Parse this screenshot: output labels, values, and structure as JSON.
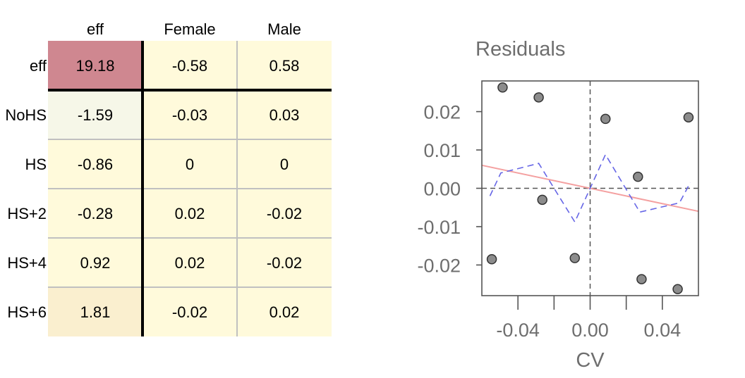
{
  "chart_data": [
    {
      "type": "table",
      "columns": [
        "eff",
        "Female",
        "Male"
      ],
      "rows": [
        {
          "label": "eff",
          "values": [
            "19.18",
            "-0.58",
            "0.58"
          ],
          "fills": [
            "#cf8790",
            "#fffadb",
            "#fffadb"
          ]
        },
        {
          "label": "NoHS",
          "values": [
            "-1.59",
            "-0.03",
            "0.03"
          ],
          "fills": [
            "#f6f7e8",
            "#fffadb",
            "#fffadb"
          ]
        },
        {
          "label": "HS",
          "values": [
            "-0.86",
            "0",
            "0"
          ],
          "fills": [
            "#fffadb",
            "#fffadb",
            "#fffadb"
          ]
        },
        {
          "label": "HS+2",
          "values": [
            "-0.28",
            "0.02",
            "-0.02"
          ],
          "fills": [
            "#fffadb",
            "#fffadb",
            "#fffadb"
          ]
        },
        {
          "label": "HS+4",
          "values": [
            "0.92",
            "0.02",
            "-0.02"
          ],
          "fills": [
            "#fffadb",
            "#fffadb",
            "#fffadb"
          ]
        },
        {
          "label": "HS+6",
          "values": [
            "1.81",
            "-0.02",
            "0.02"
          ],
          "fills": [
            "#faefcf",
            "#fffadb",
            "#fffadb"
          ]
        }
      ],
      "colors": {
        "grid": "#c0c0c0",
        "separator": "#000000"
      }
    },
    {
      "type": "scatter",
      "title": "Residuals",
      "xlabel": "CV",
      "ylabel": "",
      "xlim": [
        -0.06,
        0.06
      ],
      "ylim": [
        -0.028,
        0.028
      ],
      "xticks": [
        -0.04,
        0.0,
        0.04
      ],
      "xtick_labels": [
        "-0.04",
        "0.00",
        "0.04"
      ],
      "xticks_minor": [
        -0.02,
        0.02
      ],
      "yticks": [
        -0.02,
        -0.01,
        0.0,
        0.01,
        0.02
      ],
      "ytick_labels": [
        "-0.02",
        "-0.01",
        "0.00",
        "0.01",
        "0.02"
      ],
      "points": [
        {
          "x": -0.0545,
          "y": -0.0185
        },
        {
          "x": -0.0485,
          "y": 0.0263
        },
        {
          "x": -0.0285,
          "y": 0.0237
        },
        {
          "x": -0.0265,
          "y": -0.003
        },
        {
          "x": -0.0085,
          "y": -0.0182
        },
        {
          "x": 0.0085,
          "y": 0.0181
        },
        {
          "x": 0.0265,
          "y": 0.003
        },
        {
          "x": 0.0285,
          "y": -0.0237
        },
        {
          "x": 0.0485,
          "y": -0.0263
        },
        {
          "x": 0.0545,
          "y": 0.0185
        }
      ],
      "fit_line": {
        "x": [
          -0.06,
          0.06
        ],
        "y": [
          0.006,
          -0.006
        ],
        "color": "#f4a0a0"
      },
      "smooth_line": {
        "x": [
          -0.0555,
          -0.0495,
          -0.0285,
          -0.0085,
          0.0085,
          0.0275,
          0.0495,
          0.0555
        ],
        "y": [
          -0.002,
          0.004,
          0.0065,
          -0.0088,
          0.0088,
          -0.0062,
          -0.0038,
          0.0015
        ],
        "color": "#6666e6"
      },
      "reference_lines": {
        "x": 0,
        "y": 0
      },
      "point_color": "#8c8c8c",
      "grid": false
    }
  ]
}
